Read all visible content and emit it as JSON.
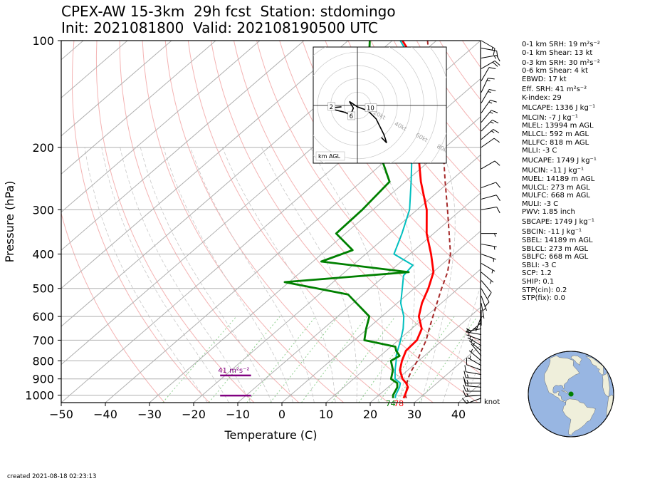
{
  "header": {
    "line1": "CPEX-AW 15-3km  29h fcst  Station: stdomingo",
    "line2": "Init: 2021081800  Valid: 202108190500 UTC"
  },
  "footer": {
    "created": "created 2021-08-18 02:23:13"
  },
  "indices": [
    {
      "label": "0-1 km SRH: 19 m²s⁻²",
      "gap": false
    },
    {
      "label": "0-1 km Shear: 13 kt",
      "gap": false
    },
    {
      "label": "0-3 km SRH: 30 m²s⁻²",
      "gap": true
    },
    {
      "label": "0-6 km Shear: 4 kt",
      "gap": false
    },
    {
      "label": "EBWD: 17 kt",
      "gap": false
    },
    {
      "label": "Eff. SRH: 41 m²s⁻²",
      "gap": true
    },
    {
      "label": "K-index: 29",
      "gap": false
    },
    {
      "label": "MLCAPE: 1336 J kg⁻¹",
      "gap": true
    },
    {
      "label": "MLCIN: -7 J kg⁻¹",
      "gap": true
    },
    {
      "label": "MLEL: 13994 m AGL",
      "gap": false
    },
    {
      "label": "MLLCL: 592 m AGL",
      "gap": false
    },
    {
      "label": "MLLFC: 818 m AGL",
      "gap": false
    },
    {
      "label": "MLLI: -3 C",
      "gap": false
    },
    {
      "label": "MUCAPE: 1749 J kg⁻¹",
      "gap": true
    },
    {
      "label": "MUCIN: -11 J kg⁻¹",
      "gap": true
    },
    {
      "label": "MUEL: 14189 m AGL",
      "gap": false
    },
    {
      "label": "MULCL: 273 m AGL",
      "gap": false
    },
    {
      "label": "MULFC: 668 m AGL",
      "gap": false
    },
    {
      "label": "MULI: -3 C",
      "gap": false
    },
    {
      "label": "PWV: 1.85 inch",
      "gap": false
    },
    {
      "label": "SBCAPE: 1749 J kg⁻¹",
      "gap": true
    },
    {
      "label": "SBCIN: -11 J kg⁻¹",
      "gap": true
    },
    {
      "label": "SBEL: 14189 m AGL",
      "gap": false
    },
    {
      "label": "SBLCL: 273 m AGL",
      "gap": false
    },
    {
      "label": "SBLFC: 668 m AGL",
      "gap": false
    },
    {
      "label": "SBLI: -3 C",
      "gap": false
    },
    {
      "label": "SCP: 1.2",
      "gap": false
    },
    {
      "label": "SHIP: 0.1",
      "gap": false
    },
    {
      "label": "STP(cin): 0.2",
      "gap": false
    },
    {
      "label": "STP(fix): 0.0",
      "gap": false
    }
  ],
  "chart_data": {
    "type": "line",
    "subtype": "skew-t log-p",
    "xlabel": "Temperature (C)",
    "ylabel": "Pressure (hPa)",
    "xlim": [
      -50,
      45
    ],
    "ylim": [
      1050,
      100
    ],
    "y_scale": "log",
    "x_ticks": [
      -50,
      -40,
      -30,
      -20,
      -10,
      0,
      10,
      20,
      30,
      40
    ],
    "y_ticks": [
      1000,
      900,
      800,
      700,
      600,
      500,
      400,
      300,
      200,
      100
    ],
    "colors": {
      "temperature": "#ff0000",
      "dewpoint": "#008000",
      "wetbulb": "#00bfbf",
      "parcel": "#a52a2a",
      "srh_bar": "#800080",
      "isotherm": "#b0b0b0",
      "dry_adiabat": "#f4b3b3",
      "moist_adiabat": "#c8c8c8",
      "mixing_ratio": "#8fd08f",
      "hodograph": "#000000"
    },
    "series": [
      {
        "name": "temperature",
        "points": [
          [
            26.4,
            1020
          ],
          [
            25.9,
            1000
          ],
          [
            24.5,
            950
          ],
          [
            23.0,
            925
          ],
          [
            21.1,
            900
          ],
          [
            18.2,
            850
          ],
          [
            16.2,
            800
          ],
          [
            14.5,
            750
          ],
          [
            14.2,
            700
          ],
          [
            12.3,
            650
          ],
          [
            8.4,
            600
          ],
          [
            5.6,
            550
          ],
          [
            3.2,
            500
          ],
          [
            0.1,
            450
          ],
          [
            -5.2,
            400
          ],
          [
            -11.6,
            350
          ],
          [
            -17.8,
            300
          ],
          [
            -26.5,
            250
          ],
          [
            -36.2,
            200
          ],
          [
            -45.5,
            150
          ],
          [
            -56.4,
            120
          ],
          [
            -67.7,
            100
          ]
        ]
      },
      {
        "name": "dewpoint",
        "points": [
          [
            24.0,
            1020
          ],
          [
            23.2,
            1000
          ],
          [
            22.1,
            950
          ],
          [
            21.0,
            925
          ],
          [
            18.5,
            900
          ],
          [
            16.6,
            850
          ],
          [
            13.7,
            800
          ],
          [
            14.4,
            775
          ],
          [
            12.3,
            750
          ],
          [
            11.0,
            730
          ],
          [
            2.3,
            700
          ],
          [
            -0.3,
            650
          ],
          [
            -2.8,
            600
          ],
          [
            -13.4,
            520
          ],
          [
            -31.0,
            480
          ],
          [
            -5.5,
            450
          ],
          [
            -28.1,
            420
          ],
          [
            -24.0,
            390
          ],
          [
            -32.1,
            350
          ],
          [
            -32.4,
            300
          ],
          [
            -33.6,
            250
          ],
          [
            -45.3,
            200
          ],
          [
            -56.4,
            150
          ],
          [
            -68.0,
            120
          ],
          [
            -75.1,
            100
          ]
        ]
      },
      {
        "name": "wetbulb",
        "points": [
          [
            24.5,
            1020
          ],
          [
            23.8,
            1000
          ],
          [
            22.6,
            950
          ],
          [
            21.7,
            925
          ],
          [
            19.4,
            900
          ],
          [
            17.1,
            850
          ],
          [
            14.9,
            800
          ],
          [
            13.6,
            775
          ],
          [
            12.6,
            750
          ],
          [
            10.5,
            700
          ],
          [
            8.1,
            650
          ],
          [
            5.0,
            600
          ],
          [
            0.8,
            550
          ],
          [
            -2.7,
            500
          ],
          [
            -5.8,
            460
          ],
          [
            -6.4,
            430
          ],
          [
            -13.6,
            400
          ],
          [
            -17.2,
            350
          ],
          [
            -21.7,
            300
          ],
          [
            -28.7,
            250
          ],
          [
            -37.5,
            200
          ],
          [
            -46.6,
            150
          ],
          [
            -57.1,
            120
          ],
          [
            -68.2,
            100
          ]
        ]
      },
      {
        "name": "parcel",
        "points": [
          [
            27.0,
            1020
          ],
          [
            26.0,
            1000
          ],
          [
            24.3,
            950
          ],
          [
            23.2,
            925
          ],
          [
            22.3,
            900
          ],
          [
            20.9,
            850
          ],
          [
            19.7,
            800
          ],
          [
            18.0,
            750
          ],
          [
            16.3,
            700
          ],
          [
            14.0,
            650
          ],
          [
            11.6,
            600
          ],
          [
            9.0,
            550
          ],
          [
            6.2,
            500
          ],
          [
            3.3,
            450
          ],
          [
            -0.8,
            400
          ],
          [
            -6.5,
            350
          ],
          [
            -13.1,
            300
          ],
          [
            -21.0,
            250
          ],
          [
            -30.5,
            200
          ],
          [
            -44.5,
            150
          ],
          [
            -62.0,
            100
          ]
        ]
      }
    ],
    "srh_label": "41 m²s⁻²",
    "srh_bar_pressures": [
      880,
      1003
    ],
    "srh_bar_temperatures": [
      -14,
      -7
    ],
    "surface_labels": [
      {
        "text": "74",
        "color": "#008000"
      },
      {
        "text": "78",
        "color": "#ff0000"
      }
    ],
    "wind_unit_label": "knot",
    "wind_barbs": [
      {
        "p": 1020,
        "dir": 250,
        "kt": 13
      },
      {
        "p": 1000,
        "dir": 265,
        "kt": 14
      },
      {
        "p": 975,
        "dir": 270,
        "kt": 16
      },
      {
        "p": 950,
        "dir": 275,
        "kt": 14
      },
      {
        "p": 925,
        "dir": 270,
        "kt": 15
      },
      {
        "p": 900,
        "dir": 275,
        "kt": 13
      },
      {
        "p": 875,
        "dir": 280,
        "kt": 10
      },
      {
        "p": 850,
        "dir": 290,
        "kt": 8
      },
      {
        "p": 825,
        "dir": 300,
        "kt": 6
      },
      {
        "p": 800,
        "dir": 310,
        "kt": 5
      },
      {
        "p": 775,
        "dir": 320,
        "kt": 6
      },
      {
        "p": 750,
        "dir": 310,
        "kt": 7
      },
      {
        "p": 725,
        "dir": 300,
        "kt": 6
      },
      {
        "p": 700,
        "dir": 290,
        "kt": 6
      },
      {
        "p": 675,
        "dir": 280,
        "kt": 5
      },
      {
        "p": 650,
        "dir": 260,
        "kt": 4
      },
      {
        "p": 625,
        "dir": 230,
        "kt": 4
      },
      {
        "p": 600,
        "dir": 200,
        "kt": 5
      },
      {
        "p": 575,
        "dir": 180,
        "kt": 6
      },
      {
        "p": 550,
        "dir": 170,
        "kt": 6
      },
      {
        "p": 525,
        "dir": 160,
        "kt": 7
      },
      {
        "p": 500,
        "dir": 150,
        "kt": 8
      },
      {
        "p": 475,
        "dir": 140,
        "kt": 8
      },
      {
        "p": 450,
        "dir": 130,
        "kt": 7
      },
      {
        "p": 425,
        "dir": 120,
        "kt": 7
      },
      {
        "p": 400,
        "dir": 110,
        "kt": 6
      },
      {
        "p": 375,
        "dir": 100,
        "kt": 5
      },
      {
        "p": 350,
        "dir": 90,
        "kt": 4
      },
      {
        "p": 300,
        "dir": 80,
        "kt": 10
      },
      {
        "p": 280,
        "dir": 75,
        "kt": 12
      },
      {
        "p": 260,
        "dir": 70,
        "kt": 10
      },
      {
        "p": 230,
        "dir": 60,
        "kt": 9
      },
      {
        "p": 200,
        "dir": 55,
        "kt": 12
      },
      {
        "p": 190,
        "dir": 50,
        "kt": 15
      },
      {
        "p": 180,
        "dir": 45,
        "kt": 14
      },
      {
        "p": 170,
        "dir": 40,
        "kt": 16
      },
      {
        "p": 160,
        "dir": 35,
        "kt": 15
      },
      {
        "p": 150,
        "dir": 30,
        "kt": 14
      },
      {
        "p": 140,
        "dir": 25,
        "kt": 13
      },
      {
        "p": 130,
        "dir": 30,
        "kt": 12
      },
      {
        "p": 120,
        "dir": 60,
        "kt": 20
      },
      {
        "p": 112,
        "dir": 80,
        "kt": 15
      },
      {
        "p": 105,
        "dir": 100,
        "kt": 10
      },
      {
        "p": 100,
        "dir": 120,
        "kt": 15
      }
    ],
    "hodograph": {
      "ring_labels": [
        "20kt",
        "40kt",
        "60kt",
        "80kt"
      ],
      "ring_values": [
        20,
        40,
        60,
        80
      ],
      "range_kt": 50,
      "units_label": "km AGL",
      "height_labels": [
        {
          "text": "2",
          "u": -20,
          "v": -1
        },
        {
          "text": "6",
          "u": -5,
          "v": -8
        },
        {
          "text": "10",
          "u": 8,
          "v": -2
        }
      ],
      "trace": [
        [
          -12,
          -1
        ],
        [
          -22,
          -2
        ],
        [
          -18,
          -3
        ],
        [
          -10,
          -5
        ],
        [
          -5,
          -7
        ],
        [
          -3,
          -2
        ],
        [
          -6,
          3
        ],
        [
          0,
          -1
        ],
        [
          8,
          -4
        ],
        [
          14,
          -10
        ],
        [
          20,
          -22
        ],
        [
          22,
          -28
        ],
        [
          18,
          -24
        ]
      ]
    },
    "globe": {
      "station_lat": 18.5,
      "station_lon": -69.9,
      "station_color": "#008000",
      "ocean_color": "#98b6e2",
      "land_color": "#efefdb"
    }
  }
}
